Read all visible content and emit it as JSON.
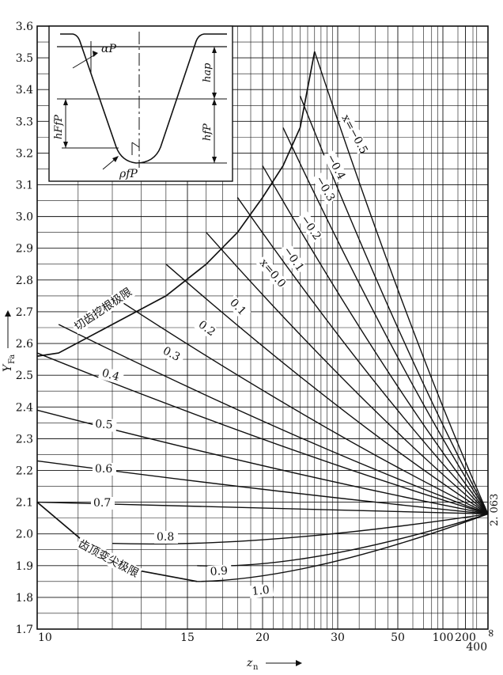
{
  "chart_data": {
    "type": "line",
    "title": "",
    "xlabel": "z",
    "xlabel_sub": "n",
    "ylabel": "Y",
    "ylabel_sub": "Fa",
    "ylim": [
      1.7,
      3.6
    ],
    "x_scale": "reciprocal",
    "x_right_end": "∞",
    "x_ticks": [
      {
        "label": "10",
        "value": 10
      },
      {
        "label": "15",
        "value": 15
      },
      {
        "label": "20",
        "value": 20
      },
      {
        "label": "30",
        "value": 30
      },
      {
        "label": "50",
        "value": 50
      },
      {
        "label": "100",
        "value": 100
      },
      {
        "label": "200",
        "value": 200
      },
      {
        "label": "400",
        "value": 400
      },
      {
        "label": "∞",
        "value": "inf"
      }
    ],
    "y_ticks": [
      "1.7",
      "1.8",
      "1.9",
      "2.0",
      "2.1",
      "2.2",
      "2.3",
      "2.4",
      "2.5",
      "2.6",
      "2.7",
      "2.8",
      "2.9",
      "3.0",
      "3.1",
      "3.2",
      "3.3",
      "3.4",
      "3.5",
      "3.6"
    ],
    "grid": true,
    "convergence_point": {
      "x": "inf",
      "y": 2.063,
      "label": "2. 063"
    },
    "boundary_curves": [
      {
        "name": "切齿挖根极限",
        "x": [
          10,
          10.5,
          12,
          14,
          16,
          18,
          20,
          22,
          24,
          26
        ],
        "y": [
          2.56,
          2.57,
          2.66,
          2.75,
          2.85,
          2.95,
          3.06,
          3.16,
          3.28,
          3.52
        ]
      },
      {
        "name": "齿顶变尖极限",
        "x": [
          10,
          12,
          15.5
        ],
        "y": [
          2.1,
          1.9,
          1.85
        ]
      }
    ],
    "series": [
      {
        "name": "x=−0.5",
        "start": {
          "x": 26,
          "y": 3.52
        }
      },
      {
        "name": "−0.4",
        "start": {
          "x": 24,
          "y": 3.38
        }
      },
      {
        "name": "−0.3",
        "start": {
          "x": 22,
          "y": 3.28
        }
      },
      {
        "name": "−0.2",
        "start": {
          "x": 20,
          "y": 3.16
        }
      },
      {
        "name": "−0.1",
        "start": {
          "x": 18,
          "y": 3.06
        }
      },
      {
        "name": "x=0.0",
        "start": {
          "x": 16,
          "y": 2.95
        }
      },
      {
        "name": "0.1",
        "start": {
          "x": 14,
          "y": 2.85
        }
      },
      {
        "name": "0.2",
        "start": {
          "x": 12,
          "y": 2.75
        }
      },
      {
        "name": "0.3",
        "start": {
          "x": 10.5,
          "y": 2.66
        }
      },
      {
        "name": "0.4",
        "start": {
          "x": 10,
          "y": 2.57
        }
      },
      {
        "name": "0.5",
        "start": {
          "x": 10,
          "y": 2.39
        }
      },
      {
        "name": "0.6",
        "start": {
          "x": 10,
          "y": 2.23
        }
      },
      {
        "name": "0.7",
        "start": {
          "x": 10,
          "y": 2.1
        }
      },
      {
        "name": "0.8",
        "start": {
          "x": 12,
          "y": 1.97
        },
        "min": {
          "x": 20,
          "y": 1.97
        }
      },
      {
        "name": "0.9",
        "start": {
          "x": 15.5,
          "y": 1.9
        },
        "min": {
          "x": 25,
          "y": 1.9
        }
      },
      {
        "name": "1.0",
        "start": {
          "x": 15.5,
          "y": 1.85
        },
        "min": {
          "x": 25,
          "y": 1.87
        }
      }
    ],
    "inset": {
      "labels": [
        "αP",
        "hap",
        "hfP",
        "hFfP",
        "ρfP"
      ]
    }
  }
}
